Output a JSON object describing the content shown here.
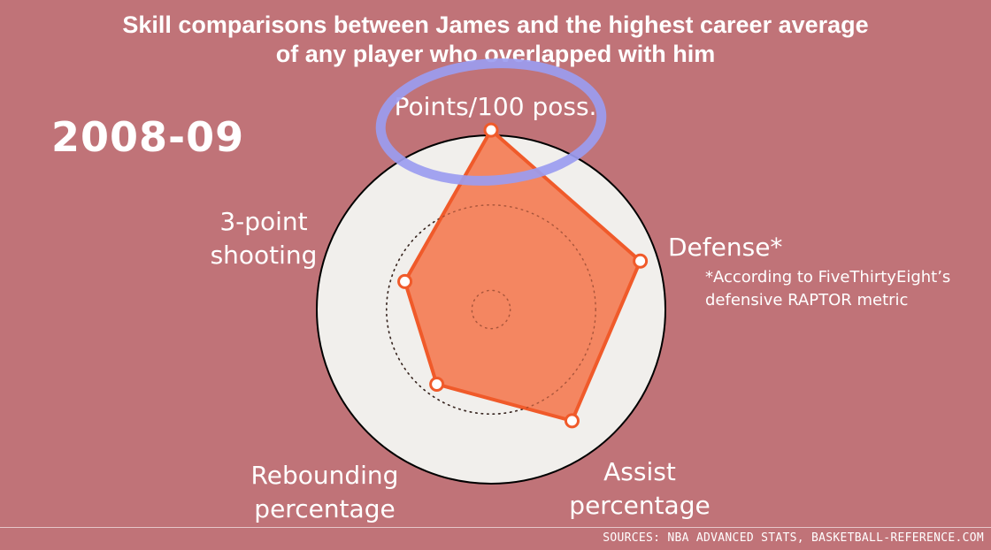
{
  "title": {
    "line1": "Skill comparisons between James and the highest career average",
    "line2": "of any player who overlapped with him"
  },
  "season": "2008-09",
  "footnote": {
    "line1": "*According to FiveThirtyEight’s",
    "line2": "defensive RAPTOR metric"
  },
  "sources": "SOURCES: NBA ADVANCED STATS, BASKETBALL-REFERENCE.COM",
  "colors": {
    "background": "#c07378",
    "outer_circle_fill": "#f1efec",
    "polygon_fill": "#f3805a",
    "polygon_stroke": "#f05a2a",
    "annotation_circle": "#9b9cf0"
  },
  "chart_data": {
    "type": "radar",
    "axes": [
      {
        "label_lines": [
          "Points/100 poss."
        ],
        "value": 1.03
      },
      {
        "label_lines": [
          "Defense*"
        ],
        "value": 0.9
      },
      {
        "label_lines": [
          "Assist",
          "percentage"
        ],
        "value": 0.79
      },
      {
        "label_lines": [
          "Rebounding",
          "percentage"
        ],
        "value": 0.53
      },
      {
        "label_lines": [
          "3-point",
          "shooting"
        ],
        "value": 0.52
      }
    ],
    "reference_rings": [
      {
        "style": "dotted",
        "value": 0.6
      },
      {
        "style": "dotted",
        "value": 0.11
      },
      {
        "style": "solid",
        "value": 1.0
      }
    ],
    "scale_max": 1.0
  }
}
